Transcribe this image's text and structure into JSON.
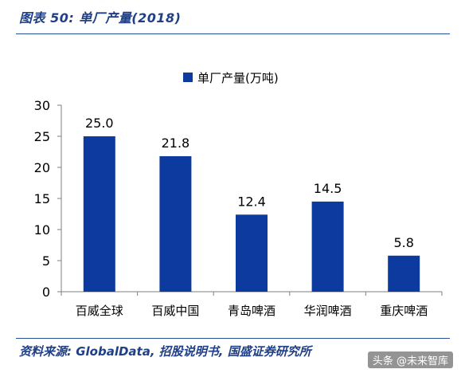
{
  "header": {
    "title": "图表 50: 单厂产量(2018)"
  },
  "footer": {
    "source": "资料来源: GlobalData, 招股说明书, 国盛证券研究所",
    "watermark": "头条 @未来智库"
  },
  "colors": {
    "bar": "#0c3a9e",
    "title": "#1f3f86",
    "axis": "#7f7f7f"
  },
  "chart_data": {
    "type": "bar",
    "categories": [
      "百威全球",
      "百威中国",
      "青岛啤酒",
      "华润啤酒",
      "重庆啤酒"
    ],
    "series": [
      {
        "name": "单厂产量(万吨)",
        "values": [
          25.0,
          21.8,
          12.4,
          14.5,
          5.8
        ]
      }
    ],
    "data_labels": [
      "25.0",
      "21.8",
      "12.4",
      "14.5",
      "5.8"
    ],
    "ylim": [
      0,
      30
    ],
    "yticks": [
      0,
      5,
      10,
      15,
      20,
      25,
      30
    ],
    "legend_position": "top-center",
    "grid": false
  }
}
